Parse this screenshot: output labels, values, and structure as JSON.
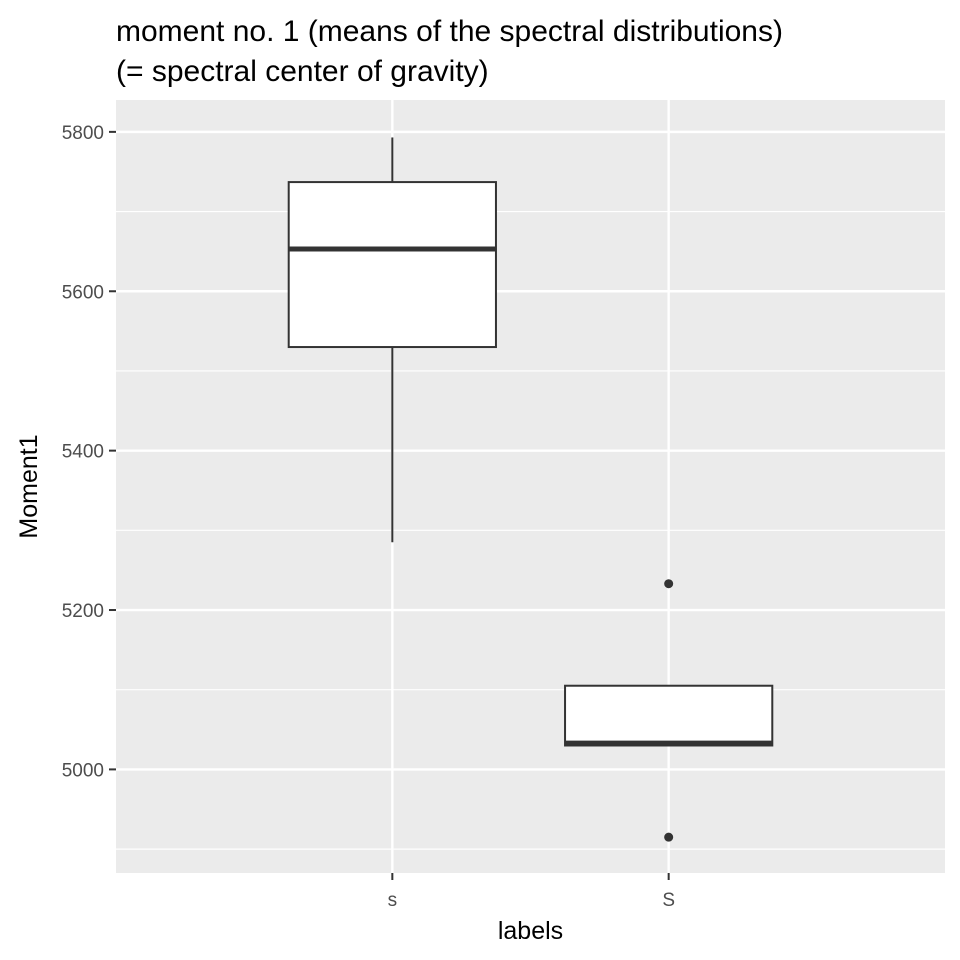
{
  "chart_data": {
    "type": "boxplot",
    "title_lines": [
      "moment no. 1 (means of the spectral distributions)",
      "(= spectral center of gravity)"
    ],
    "xlabel": "labels",
    "ylabel": "Moment1",
    "categories": [
      "s",
      "S"
    ],
    "ylim": [
      4870,
      5840
    ],
    "y_ticks": [
      5000,
      5200,
      5400,
      5600,
      5800
    ],
    "grid": true,
    "boxes": [
      {
        "category": "s",
        "whisker_low": 5285,
        "q1": 5530,
        "median": 5653,
        "q3": 5737,
        "whisker_high": 5793,
        "outliers": []
      },
      {
        "category": "S",
        "whisker_low": 5030,
        "q1": 5030,
        "median": 5033,
        "q3": 5105,
        "whisker_high": 5105,
        "outliers": [
          5233,
          4915
        ]
      }
    ],
    "colors": {
      "panel": "#EBEBEB",
      "grid": "#FFFFFF",
      "box_fill": "#FFFFFF",
      "box_line": "#333333",
      "tick_text": "#4D4D4D",
      "tick_mark": "#333333"
    }
  }
}
